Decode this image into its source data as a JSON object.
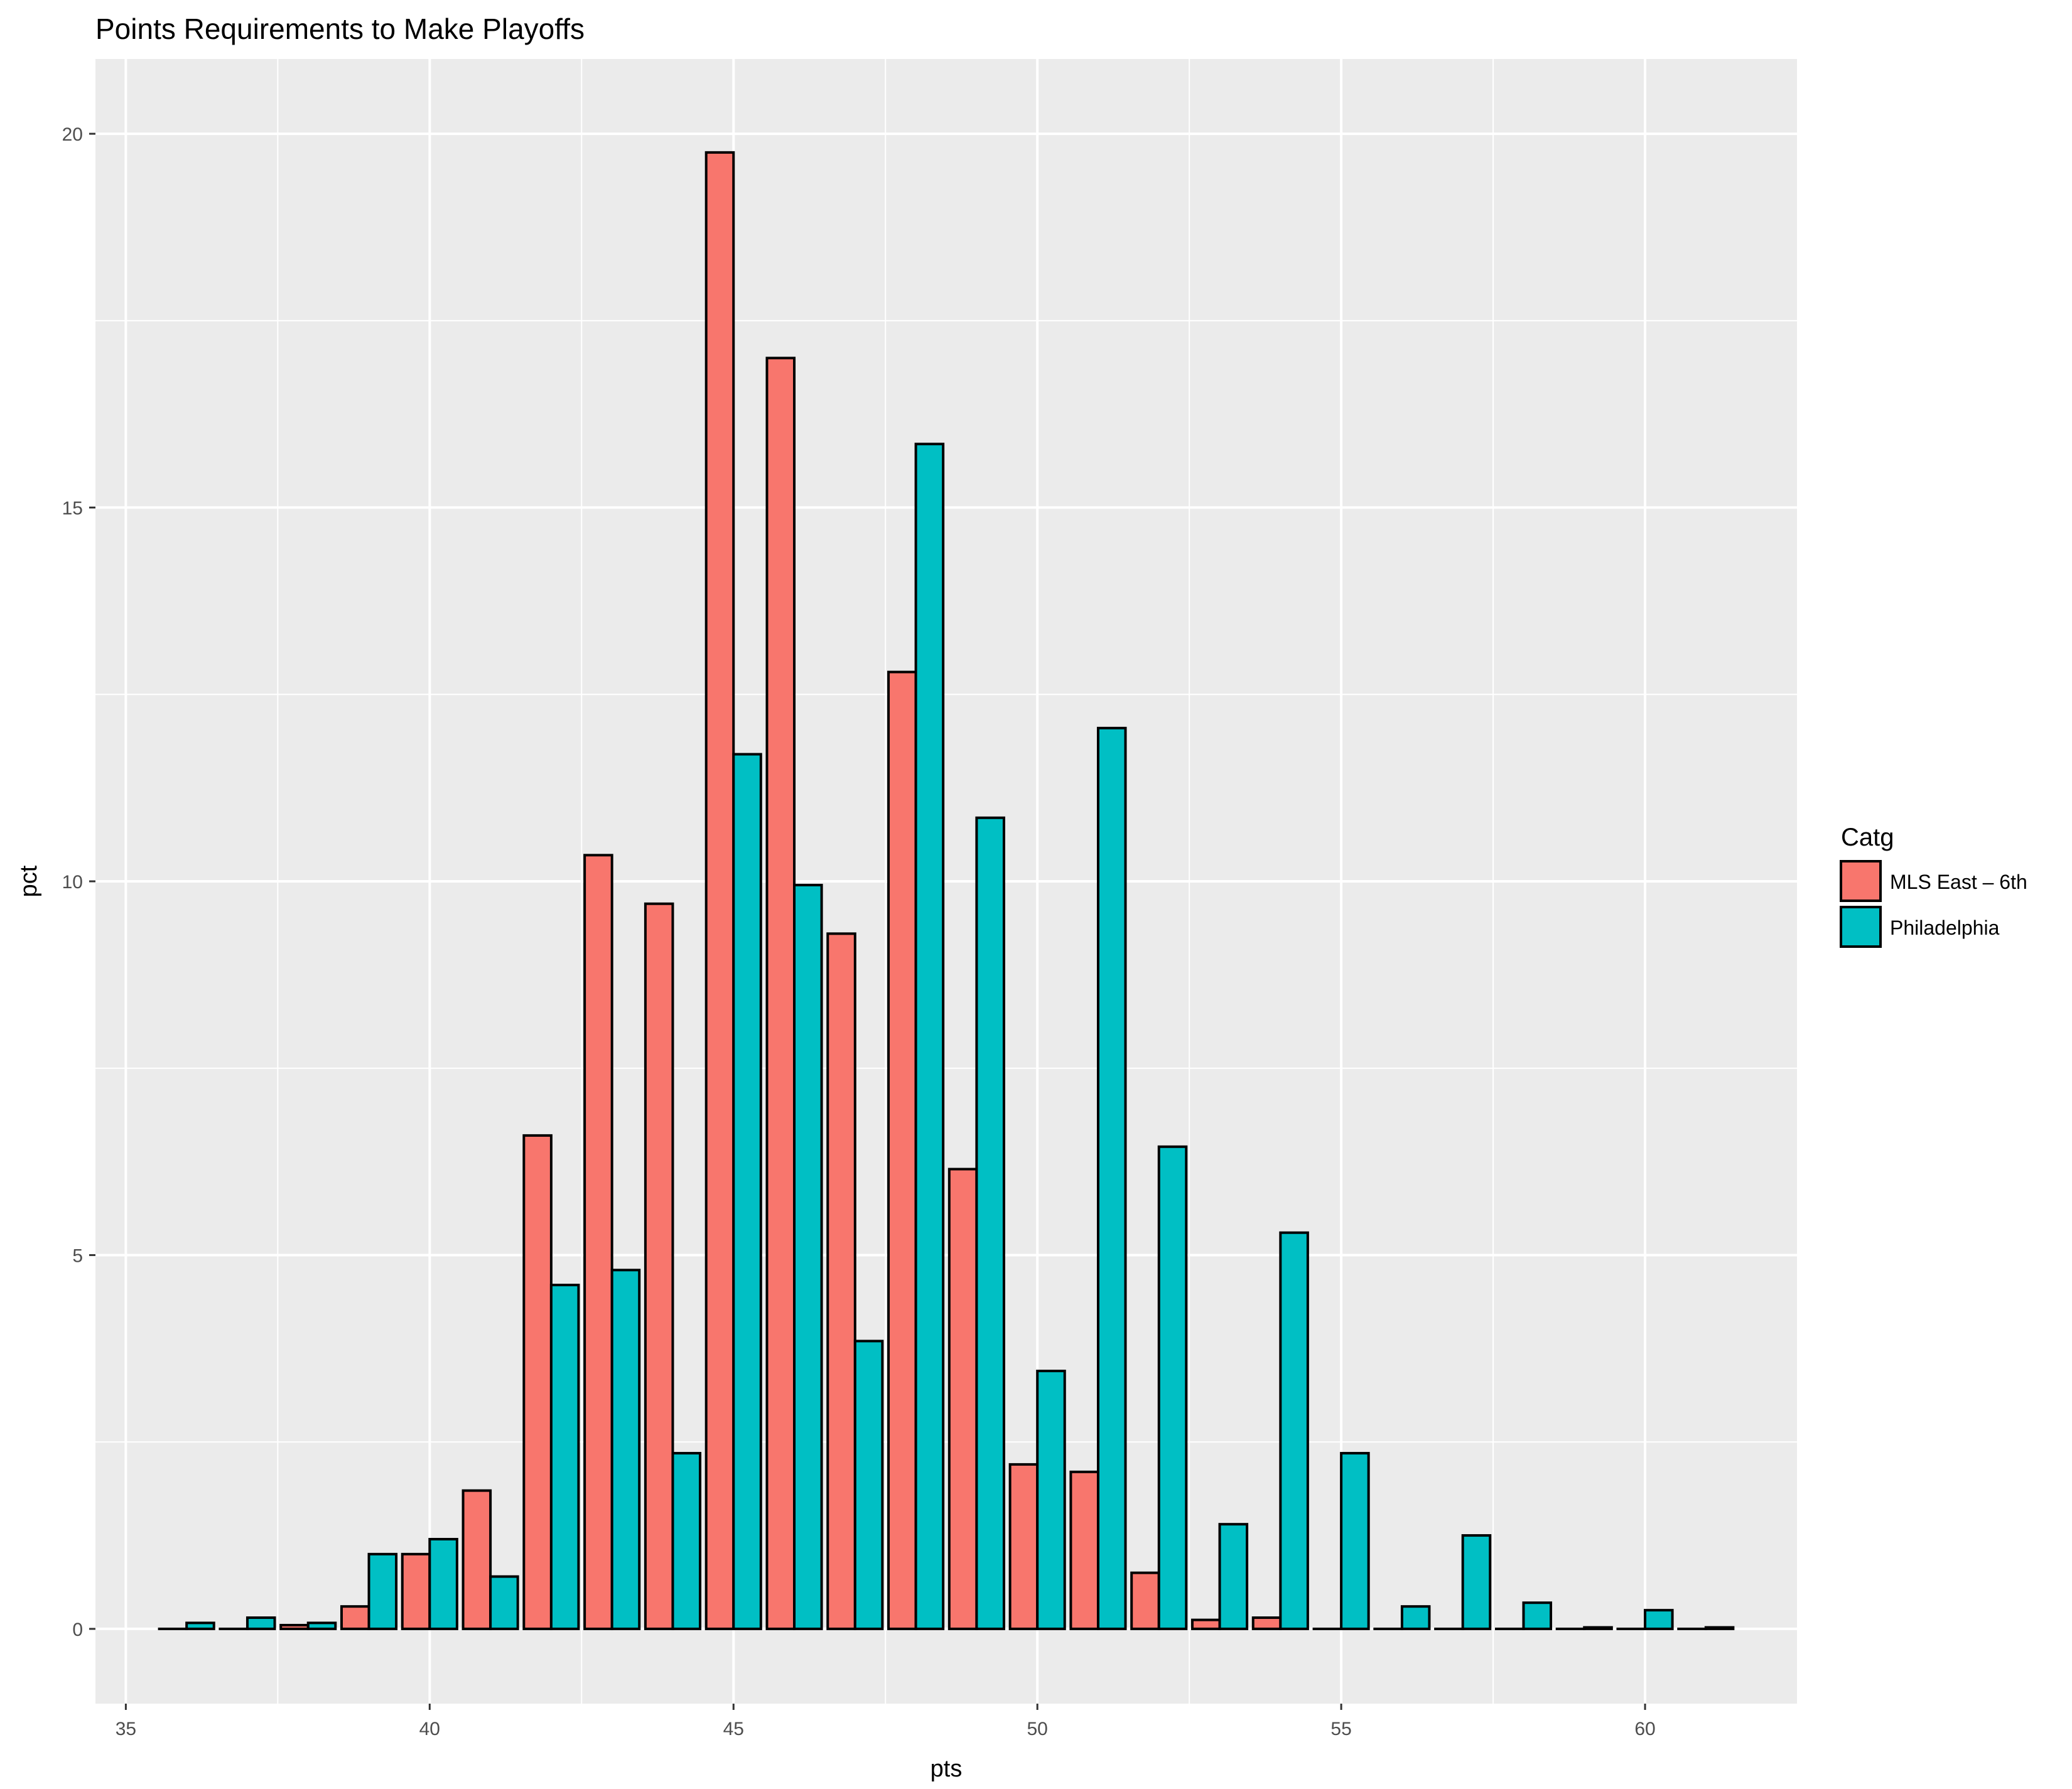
{
  "chart_data": {
    "type": "bar",
    "title": "Points Requirements to Make Playoffs",
    "xlabel": "pts",
    "ylabel": "pct",
    "x": [
      36,
      37,
      38,
      39,
      40,
      41,
      42,
      43,
      44,
      45,
      46,
      47,
      48,
      49,
      50,
      51,
      52,
      53,
      54,
      55,
      56,
      57,
      58,
      59,
      60,
      61
    ],
    "xlim": [
      34.5,
      62.5
    ],
    "ylim": [
      -1,
      21
    ],
    "x_ticks": [
      35,
      40,
      45,
      50,
      55,
      60
    ],
    "y_ticks": [
      0,
      5,
      10,
      15,
      20
    ],
    "grid": true,
    "legend_title": "Catg",
    "legend_position": "right",
    "series": [
      {
        "name": "MLS East – 6th",
        "color": "#F8766D",
        "values": [
          0,
          0,
          0.05,
          0.3,
          1.0,
          1.85,
          6.6,
          10.35,
          9.7,
          19.75,
          17.0,
          9.3,
          12.8,
          6.15,
          2.2,
          2.1,
          0.75,
          0.12,
          0.15,
          0,
          0,
          0,
          0,
          0,
          0,
          0
        ]
      },
      {
        "name": "Philadelphia",
        "color": "#00BFC4",
        "values": [
          0.08,
          0.15,
          0.08,
          1.0,
          1.2,
          0.7,
          4.6,
          4.8,
          2.35,
          11.7,
          9.95,
          3.85,
          15.85,
          10.85,
          3.45,
          12.05,
          6.45,
          1.4,
          5.3,
          2.35,
          0.3,
          1.25,
          0.35,
          0.02,
          0.25,
          0.02
        ]
      }
    ]
  }
}
